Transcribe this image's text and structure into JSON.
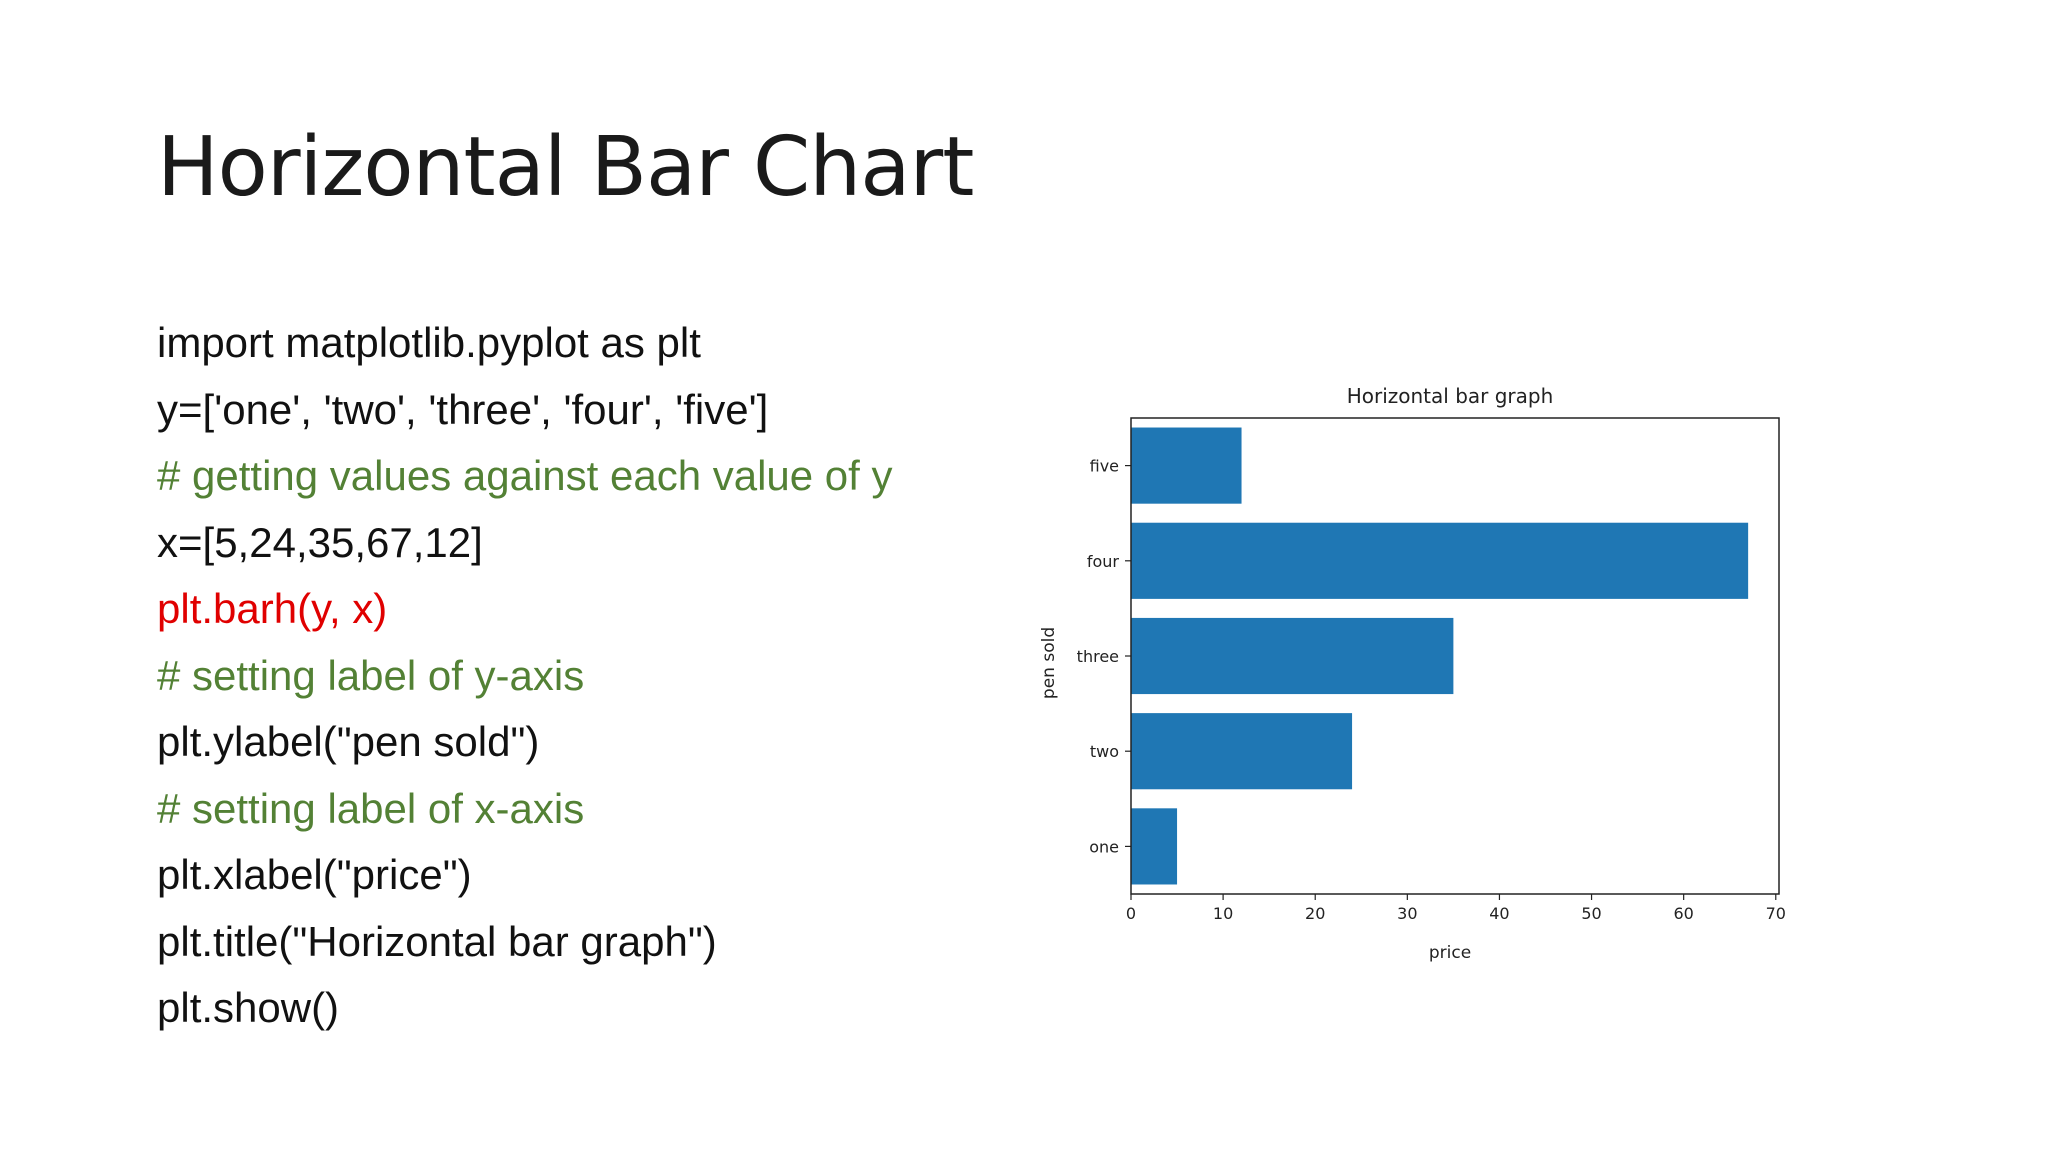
{
  "slide": {
    "title": "Horizontal Bar Chart"
  },
  "code": {
    "lines": [
      {
        "text": "import matplotlib.pyplot as plt",
        "kind": "code"
      },
      {
        "text": "y=['one', 'two', 'three', 'four', 'five']",
        "kind": "code"
      },
      {
        "text": "# getting values against each value of y",
        "kind": "comment"
      },
      {
        "text": "x=[5,24,35,67,12]",
        "kind": "code"
      },
      {
        "text": "plt.barh(y, x)",
        "kind": "highlight"
      },
      {
        "text": "# setting label of y-axis",
        "kind": "comment"
      },
      {
        "text": "plt.ylabel(\"pen sold\")",
        "kind": "code"
      },
      {
        "text": "# setting label of x-axis",
        "kind": "comment"
      },
      {
        "text": "plt.xlabel(\"price\")",
        "kind": "code"
      },
      {
        "text": "plt.title(\"Horizontal bar graph\")",
        "kind": "code"
      },
      {
        "text": "plt.show()",
        "kind": "code"
      }
    ],
    "colors": {
      "code": "#111111",
      "comment": "#538135",
      "highlight": "#e00000"
    }
  },
  "chart_data": {
    "type": "bar",
    "orientation": "horizontal",
    "title": "Horizontal bar graph",
    "xlabel": "price",
    "ylabel": "pen sold",
    "categories": [
      "one",
      "two",
      "three",
      "four",
      "five"
    ],
    "values": [
      5,
      24,
      35,
      67,
      12
    ],
    "xlim": [
      0,
      70.35
    ],
    "xticks": [
      0,
      10,
      20,
      30,
      40,
      50,
      60,
      70
    ],
    "grid": false,
    "bar_color": "#1f77b4"
  }
}
